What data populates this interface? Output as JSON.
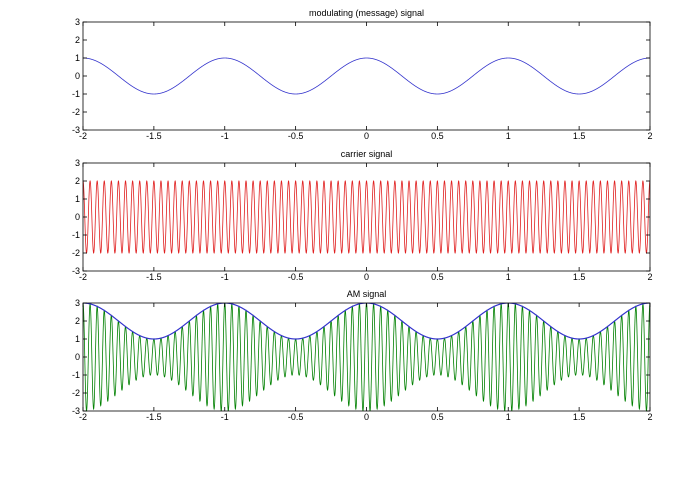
{
  "chart_data": [
    {
      "type": "line",
      "title": "modulating (message) signal",
      "xlim": [
        -2,
        2
      ],
      "ylim": [
        -3,
        3
      ],
      "xticks": [
        -2,
        -1.5,
        -1,
        -0.5,
        0,
        0.5,
        1,
        1.5,
        2
      ],
      "yticks": [
        -3,
        -2,
        -1,
        0,
        1,
        2,
        3
      ],
      "grid": false,
      "series": [
        {
          "formula": "cos(2*pi*1*t)",
          "amplitude": 1,
          "frequency": 1,
          "color": "#3333cc"
        }
      ]
    },
    {
      "type": "line",
      "title": "carrier signal",
      "xlim": [
        -2,
        2
      ],
      "ylim": [
        -3,
        3
      ],
      "xticks": [
        -2,
        -1.5,
        -1,
        -0.5,
        0,
        0.5,
        1,
        1.5,
        2
      ],
      "yticks": [
        -3,
        -2,
        -1,
        0,
        1,
        2,
        3
      ],
      "grid": false,
      "series": [
        {
          "formula": "2*cos(2*pi*20*t)",
          "amplitude": 2,
          "frequency": 20,
          "color": "#e02020"
        }
      ]
    },
    {
      "type": "line",
      "title": "AM signal",
      "xlim": [
        -2,
        2
      ],
      "ylim": [
        -3,
        3
      ],
      "xticks": [
        -2,
        -1.5,
        -1,
        -0.5,
        0,
        0.5,
        1,
        1.5,
        2
      ],
      "yticks": [
        -3,
        -2,
        -1,
        0,
        1,
        2,
        3
      ],
      "grid": false,
      "series": [
        {
          "formula": "(2+cos(2*pi*1*t))*cos(2*pi*20*t)",
          "color": "#008000"
        },
        {
          "formula": "2+cos(2*pi*1*t)",
          "color": "#3333cc"
        }
      ]
    }
  ]
}
